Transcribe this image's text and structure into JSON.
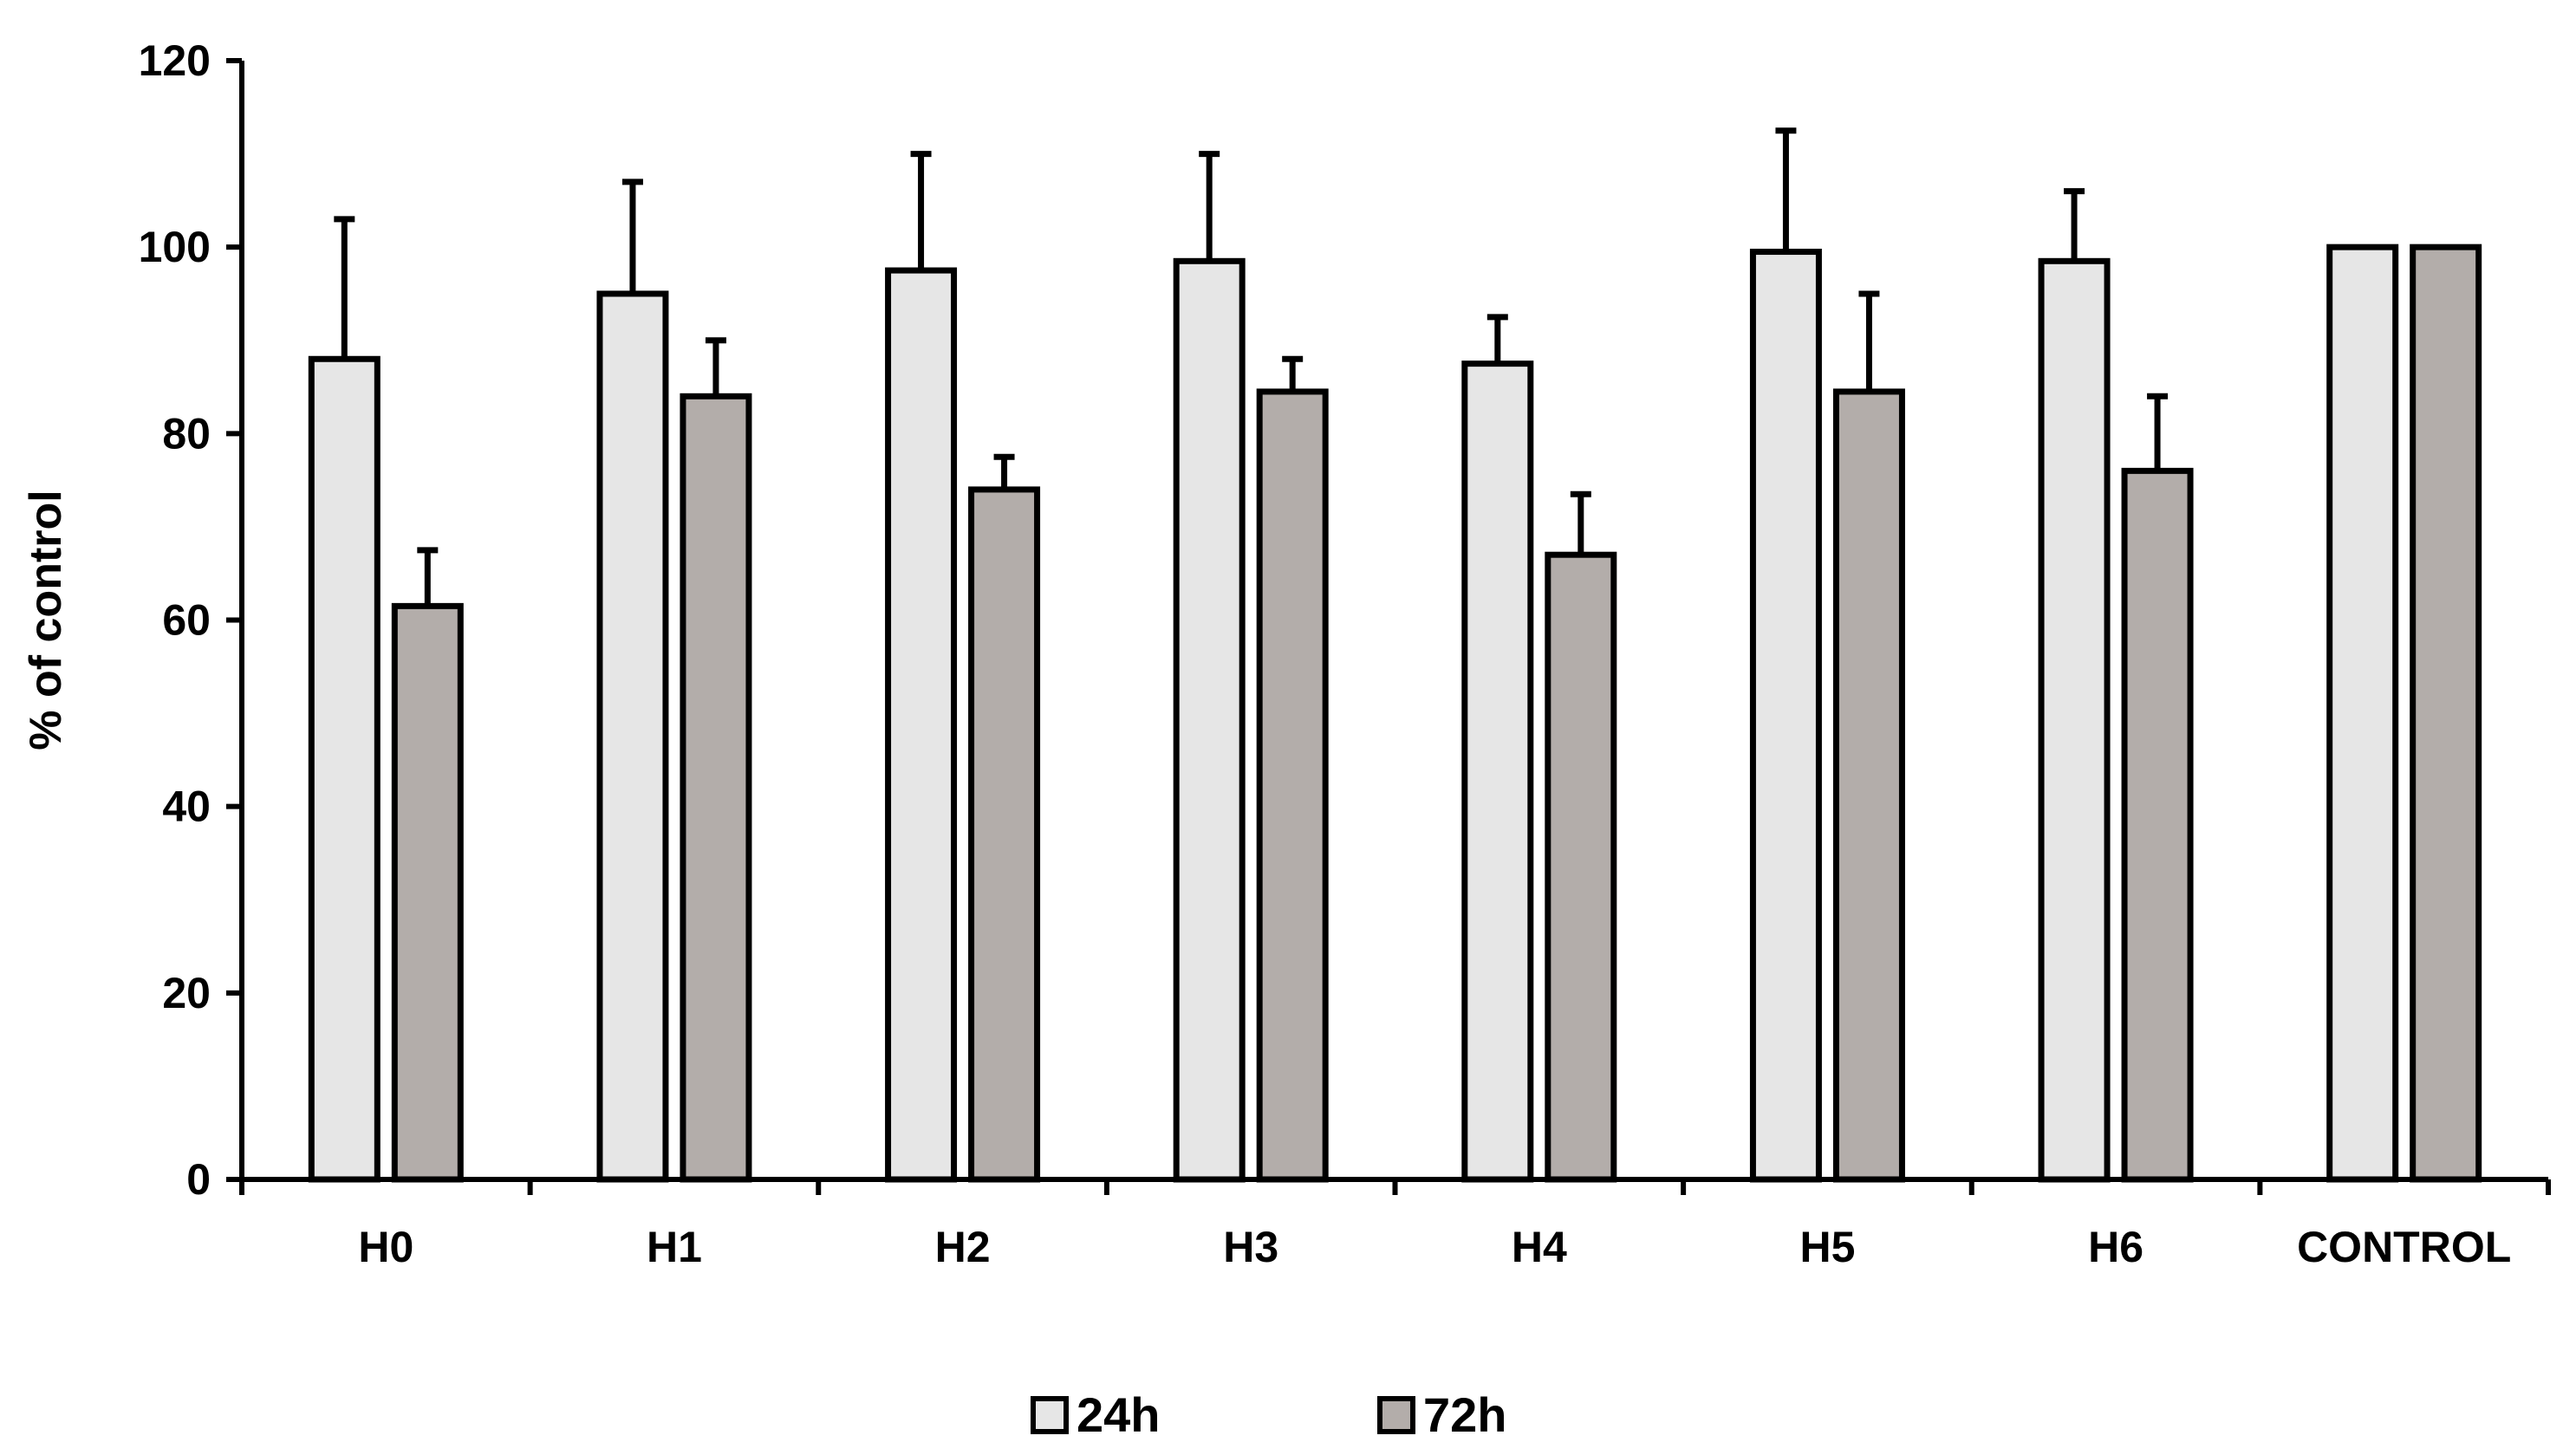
{
  "chart_data": {
    "type": "bar",
    "title": "",
    "xlabel": "",
    "ylabel": "% of control",
    "ylim": [
      0,
      120
    ],
    "yticks": [
      0,
      20,
      40,
      60,
      80,
      100,
      120
    ],
    "categories": [
      "H0",
      "H1",
      "H2",
      "H3",
      "H4",
      "H5",
      "H6",
      "CONTROL"
    ],
    "series": [
      {
        "name": "24h",
        "color": "#e6e6e6",
        "values": [
          88,
          95,
          97.5,
          98.5,
          87.5,
          99.5,
          98.5,
          100
        ],
        "errors": [
          15,
          12,
          12.5,
          11.5,
          5,
          13,
          7.5,
          0
        ]
      },
      {
        "name": "72h",
        "color": "#b3adaa",
        "values": [
          61.5,
          84,
          74,
          84.5,
          67,
          84.5,
          76,
          100
        ],
        "errors": [
          6,
          6,
          3.5,
          3.5,
          6.5,
          10.5,
          8,
          0
        ]
      }
    ],
    "legend_position": "bottom-center",
    "grid": false
  }
}
